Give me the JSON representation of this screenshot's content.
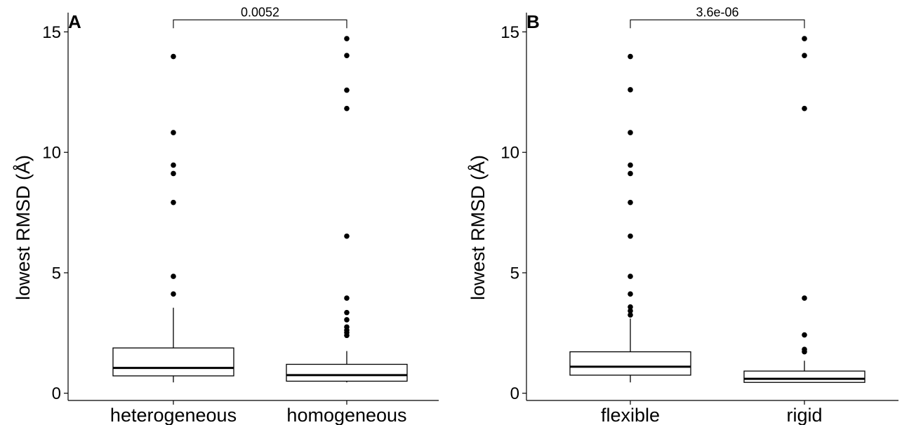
{
  "chart_data": [
    {
      "type": "box",
      "panel_label": "A",
      "ylabel": "lowest RMSD (Å)",
      "ylim": [
        -0.3,
        15.8
      ],
      "yticks": [
        0,
        5,
        10,
        15
      ],
      "ytick_labels": [
        "0",
        "5",
        "10",
        "15"
      ],
      "grid": false,
      "categories": [
        "heterogeneous",
        "homogeneous"
      ],
      "boxes": [
        {
          "name": "heterogeneous",
          "whisker_low": 0.45,
          "q1": 0.72,
          "median": 1.05,
          "q3": 1.88,
          "whisker_high": 3.55,
          "outliers": [
            4.12,
            4.85,
            7.92,
            9.12,
            9.47,
            10.82,
            13.98
          ]
        },
        {
          "name": "homogeneous",
          "whisker_low": 0.45,
          "q1": 0.5,
          "median": 0.75,
          "q3": 1.2,
          "whisker_high": 1.75,
          "outliers": [
            2.4,
            2.52,
            2.62,
            2.75,
            3.05,
            3.35,
            3.95,
            6.52,
            11.82,
            12.58,
            14.02,
            14.72
          ]
        }
      ],
      "comparison": {
        "label": "0.0052",
        "y": 15.5
      }
    },
    {
      "type": "box",
      "panel_label": "B",
      "ylabel": "lowest RMSD (Å)",
      "ylim": [
        -0.3,
        15.8
      ],
      "yticks": [
        0,
        5,
        10,
        15
      ],
      "ytick_labels": [
        "0",
        "5",
        "10",
        "15"
      ],
      "grid": false,
      "categories": [
        "flexible",
        "rigid"
      ],
      "boxes": [
        {
          "name": "flexible",
          "whisker_low": 0.45,
          "q1": 0.75,
          "median": 1.1,
          "q3": 1.72,
          "whisker_high": 3.1,
          "outliers": [
            3.25,
            3.42,
            3.58,
            4.12,
            4.85,
            6.52,
            7.92,
            9.12,
            9.47,
            10.82,
            12.6,
            13.98
          ]
        },
        {
          "name": "rigid",
          "whisker_low": 0.45,
          "q1": 0.45,
          "median": 0.6,
          "q3": 0.92,
          "whisker_high": 1.35,
          "outliers": [
            1.72,
            1.82,
            2.42,
            3.95,
            11.82,
            14.02,
            14.72
          ]
        }
      ],
      "comparison": {
        "label": "3.6e-06",
        "y": 15.5
      }
    }
  ]
}
